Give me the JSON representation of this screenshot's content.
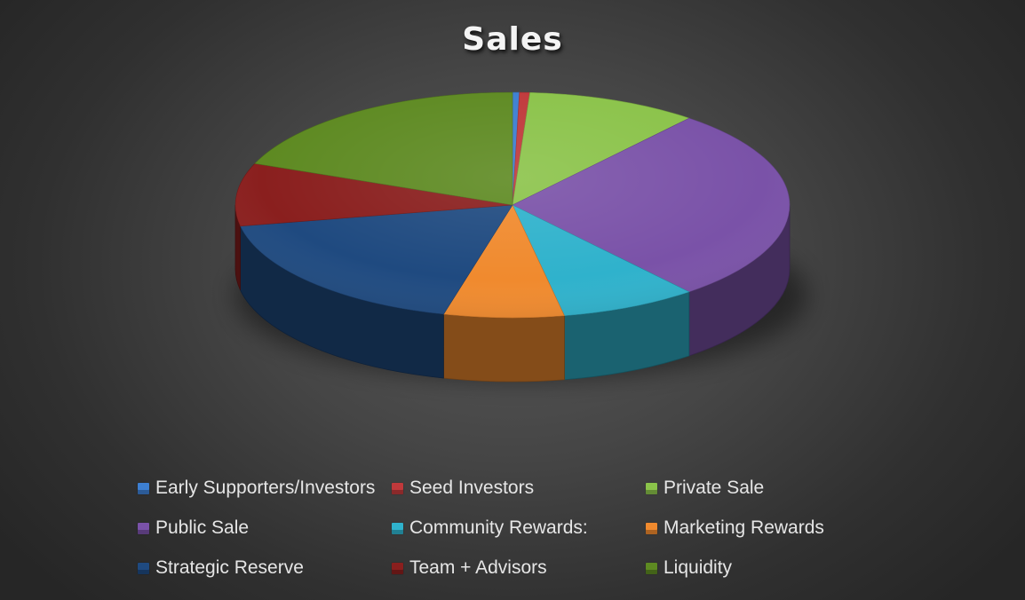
{
  "chart_data": {
    "type": "pie",
    "title": "Sales",
    "style": "3d",
    "legend_position": "bottom",
    "series": [
      {
        "name": "Early Supporters/Investors",
        "value": 0.4,
        "color": "#3d7fd1"
      },
      {
        "name": "Seed Investors",
        "value": 0.6,
        "color": "#c0393b"
      },
      {
        "name": "Private Sale",
        "value": 10,
        "color": "#8bc34a"
      },
      {
        "name": "Public Sale",
        "value": 28,
        "color": "#7a52a8"
      },
      {
        "name": "Community Rewards:",
        "value": 8,
        "color": "#2fb2cc"
      },
      {
        "name": "Marketing Rewards",
        "value": 7,
        "color": "#f08a2e"
      },
      {
        "name": "Strategic Reserve",
        "value": 18,
        "color": "#1f4a80"
      },
      {
        "name": "Team + Advisors",
        "value": 9,
        "color": "#8a1f1e"
      },
      {
        "name": "Liquidity",
        "value": 19,
        "color": "#5e8a22"
      }
    ]
  }
}
